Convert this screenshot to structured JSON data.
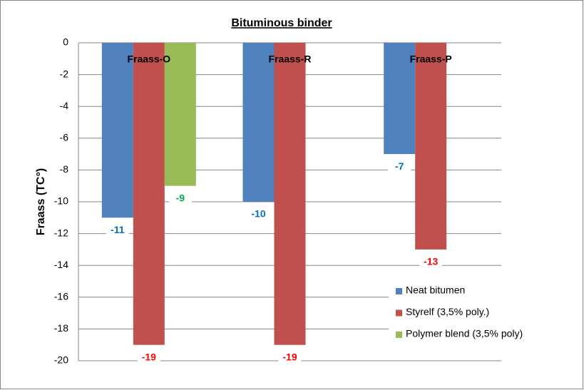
{
  "chart_data": {
    "type": "bar",
    "title": "Bituminous binder",
    "y_label": "Fraass (TC°)",
    "categories": [
      "Fraass-O",
      "Fraass-R",
      "Fraass-P"
    ],
    "series": [
      {
        "name": "Neat bitumen",
        "color": "#4f81bd",
        "label_color": "#0070c0",
        "values": [
          -11,
          -10,
          -7
        ]
      },
      {
        "name": "Styrelf (3,5% poly.)",
        "color": "#c0504d",
        "label_color": "#ff0000",
        "values": [
          -19,
          -19,
          -13
        ]
      },
      {
        "name": "Polymer blend (3,5% poly)",
        "color": "#9bbb59",
        "label_color": "#00b050",
        "values": [
          -9,
          null,
          null
        ]
      }
    ],
    "ylim": [
      -20,
      0
    ],
    "yticks": [
      0,
      -2,
      -4,
      -6,
      -8,
      -10,
      -12,
      -14,
      -16,
      -18,
      -20
    ],
    "grid": true,
    "legend": "lower right"
  }
}
